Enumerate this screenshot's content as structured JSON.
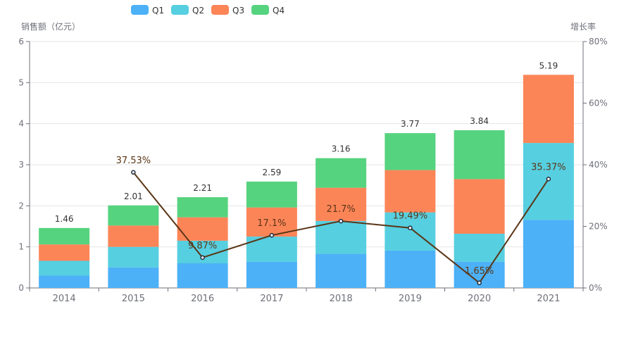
{
  "chart_data": {
    "type": "bar",
    "stacked": true,
    "categories": [
      "2014",
      "2015",
      "2016",
      "2017",
      "2018",
      "2019",
      "2020",
      "2021"
    ],
    "series": [
      {
        "name": "Q1",
        "values": [
          0.3,
          0.5,
          0.6,
          0.64,
          0.83,
          0.91,
          0.64,
          1.66
        ],
        "color": "#4CB1F7"
      },
      {
        "name": "Q2",
        "values": [
          0.36,
          0.5,
          0.55,
          0.61,
          0.8,
          0.93,
          0.68,
          1.87
        ],
        "color": "#56CFE0"
      },
      {
        "name": "Q3",
        "values": [
          0.4,
          0.52,
          0.57,
          0.71,
          0.81,
          1.03,
          1.33,
          1.66
        ],
        "color": "#FC8558"
      },
      {
        "name": "Q4",
        "values": [
          0.4,
          0.49,
          0.49,
          0.63,
          0.72,
          0.9,
          1.19,
          0
        ],
        "color": "#56D37E"
      }
    ],
    "totals": [
      1.46,
      2.01,
      2.21,
      2.59,
      3.16,
      3.77,
      3.84,
      5.19
    ],
    "growth_line": {
      "name": "增长率",
      "values": [
        null,
        37.53,
        9.87,
        17.1,
        21.7,
        19.49,
        1.65,
        35.37
      ],
      "labels": [
        "",
        "37.53%",
        "9.87%",
        "17.1%",
        "21.7%",
        "19.49%",
        "1.65%",
        "35.37%"
      ],
      "color": "#5A3617"
    },
    "ylabel": "销售额（亿元）",
    "y2label": "增长率",
    "ylim": [
      0,
      6
    ],
    "y2lim": [
      0,
      80
    ],
    "y_ticks": [
      "0",
      "1",
      "2",
      "3",
      "4",
      "5",
      "6"
    ],
    "y2_ticks": [
      "0%",
      "20%",
      "40%",
      "60%",
      "80%"
    ],
    "legend": [
      "Q1",
      "Q2",
      "Q3",
      "Q4"
    ],
    "legend_position": "top"
  }
}
